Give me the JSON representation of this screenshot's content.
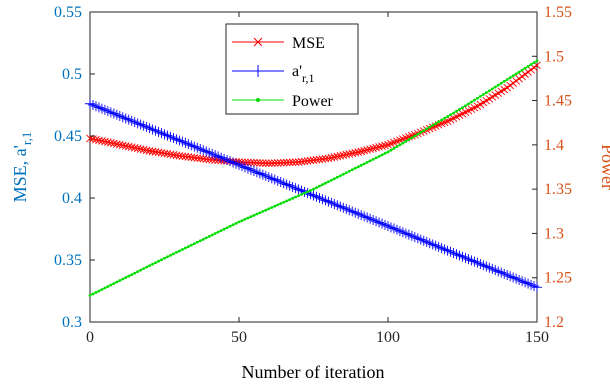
{
  "chart_data": {
    "type": "line",
    "title": "",
    "xlabel": "Number of iteration",
    "ylabel_left": "MSE, a'",
    "ylabel_left_sub": "r,1",
    "ylabel_right": "Power",
    "xlim": [
      0,
      150
    ],
    "ylim_left": [
      0.3,
      0.55
    ],
    "ylim_right": [
      1.2,
      1.55
    ],
    "xticks": [
      "0",
      "50",
      "100",
      "150"
    ],
    "yticks_left": [
      "0.3",
      "0.35",
      "0.4",
      "0.45",
      "0.5",
      "0.55"
    ],
    "yticks_right": [
      "1.2",
      "1.25",
      "1.3",
      "1.35",
      "1.4",
      "1.45",
      "1.5",
      "1.55"
    ],
    "grid": false,
    "legend_position": "top-center",
    "legend": [
      {
        "label": "MSE",
        "color": "#ff0000",
        "marker": "x"
      },
      {
        "label": "a'",
        "sub": "r,1",
        "color": "#0000ff",
        "marker": "+"
      },
      {
        "label": "Power",
        "color": "#00dd00",
        "marker": "dot"
      }
    ],
    "colors": {
      "left_axis": "#0072bd",
      "right_axis": "#d95319"
    },
    "series": [
      {
        "name": "MSE",
        "axis": "left",
        "color": "#ff0000",
        "marker": "x",
        "x": [
          0,
          10,
          20,
          30,
          40,
          50,
          60,
          70,
          80,
          90,
          100,
          110,
          120,
          130,
          140,
          150
        ],
        "y": [
          0.448,
          0.443,
          0.438,
          0.434,
          0.431,
          0.429,
          0.428,
          0.429,
          0.432,
          0.437,
          0.443,
          0.452,
          0.462,
          0.474,
          0.489,
          0.507
        ]
      },
      {
        "name": "a'r,1",
        "axis": "left",
        "color": "#0000ff",
        "marker": "+",
        "x": [
          0,
          150
        ],
        "y": [
          0.476,
          0.328
        ]
      },
      {
        "name": "Power",
        "axis": "right",
        "color": "#00dd00",
        "marker": "dot",
        "x": [
          0,
          25,
          50,
          75,
          100,
          125,
          150
        ],
        "y": [
          1.23,
          1.272,
          1.313,
          1.35,
          1.392,
          1.442,
          1.495
        ]
      }
    ]
  }
}
